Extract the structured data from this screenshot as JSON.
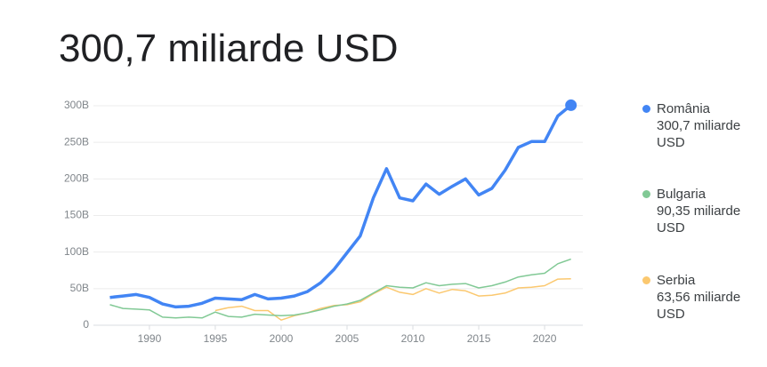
{
  "chart_data": {
    "type": "line",
    "title": "300,7 miliarde USD",
    "x": [
      1987,
      1988,
      1989,
      1990,
      1991,
      1992,
      1993,
      1994,
      1995,
      1996,
      1997,
      1998,
      1999,
      2000,
      2001,
      2002,
      2003,
      2004,
      2005,
      2006,
      2007,
      2008,
      2009,
      2010,
      2011,
      2012,
      2013,
      2014,
      2015,
      2016,
      2017,
      2018,
      2019,
      2020,
      2021,
      2022
    ],
    "xlim": [
      1985.75,
      2022.9
    ],
    "xticks": [
      1990,
      1995,
      2000,
      2005,
      2010,
      2015,
      2020
    ],
    "ylim": [
      0,
      300
    ],
    "yticks": [
      0,
      {
        "value": 50,
        "label": "50B"
      },
      {
        "value": 100,
        "label": "100B"
      },
      {
        "value": 150,
        "label": "150B"
      },
      {
        "value": 200,
        "label": "200B"
      },
      {
        "value": 250,
        "label": "250B"
      },
      {
        "value": 300,
        "label": "300B"
      }
    ],
    "grid": true,
    "series": [
      {
        "name": "România",
        "value_label": "300,7 miliarde USD",
        "color": "#4285f4",
        "values": [
          38,
          40,
          42,
          38,
          29,
          25,
          26,
          30,
          37,
          36,
          35,
          42,
          36,
          37,
          40,
          46,
          58,
          76,
          99,
          122,
          174,
          214,
          174,
          170,
          193,
          179,
          190,
          200,
          178,
          187,
          212,
          243,
          251,
          251,
          286,
          300.7
        ]
      },
      {
        "name": "Bulgaria",
        "value_label": "90,35 miliarde USD",
        "color": "#81c995",
        "values": [
          28,
          23,
          22,
          21,
          11,
          10,
          11,
          10,
          18,
          12,
          11,
          15,
          14,
          13,
          14,
          17,
          21,
          26,
          29,
          34,
          44,
          54,
          52,
          51,
          58,
          54,
          56,
          57,
          51,
          54,
          59,
          66,
          69,
          71,
          84,
          90.35
        ]
      },
      {
        "name": "Serbia",
        "value_label": "63,56 miliarde USD",
        "color": "#fbc86f",
        "values": [
          null,
          null,
          null,
          null,
          null,
          null,
          null,
          null,
          20,
          24,
          26,
          20,
          20,
          7,
          13,
          17,
          23,
          27,
          28,
          32,
          43,
          52,
          45,
          42,
          50,
          44,
          49,
          47,
          40,
          41,
          44,
          51,
          52,
          54,
          63,
          63.56
        ]
      }
    ]
  }
}
